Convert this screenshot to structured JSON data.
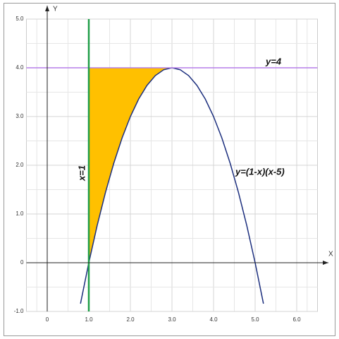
{
  "chart_data": {
    "type": "line",
    "xlabel": "X",
    "ylabel": "Y",
    "xlim": [
      -0.5,
      6.5
    ],
    "ylim": [
      -1,
      5
    ],
    "xticks": [
      0,
      {
        "value": 1,
        "label": "1.0"
      },
      {
        "value": 2,
        "label": "2.0"
      },
      {
        "value": 3,
        "label": "3.0"
      },
      {
        "value": 4,
        "label": "4.0"
      },
      {
        "value": 5,
        "label": "5.0"
      },
      {
        "value": 6,
        "label": "6.0"
      }
    ],
    "yticks": [
      {
        "value": -1,
        "label": "-1.0"
      },
      0,
      {
        "value": 1,
        "label": "1.0"
      },
      {
        "value": 2,
        "label": "2.0"
      },
      {
        "value": 3,
        "label": "3.0"
      },
      {
        "value": 4,
        "label": "4.0"
      },
      {
        "value": 5,
        "label": "5.0"
      }
    ],
    "grid": true,
    "series": [
      {
        "color": "#1c2f7e",
        "x": [
          0.8,
          1.0,
          1.2,
          1.4,
          1.6,
          1.8,
          2.0,
          2.2,
          2.4,
          2.6,
          2.8,
          3.0,
          3.2,
          3.4,
          3.6,
          3.8,
          4.0,
          4.2,
          4.4,
          4.6,
          4.8,
          5.0,
          5.2
        ],
        "values": [
          -0.84,
          0,
          0.76,
          1.44,
          2.04,
          2.56,
          3,
          3.36,
          3.64,
          3.84,
          3.96,
          4,
          3.96,
          3.84,
          3.64,
          3.36,
          3,
          2.56,
          2.04,
          1.44,
          0.76,
          0,
          -0.84
        ]
      },
      {
        "color": "#b67fe8",
        "x": [
          -0.5,
          6.5
        ],
        "values": [
          4,
          4
        ]
      },
      {
        "color": "#1f9e48",
        "x": [
          1,
          1
        ],
        "values": [
          -1,
          5
        ]
      }
    ],
    "fill": {
      "color": "#ffc000",
      "x": [
        1.0,
        1.2,
        1.4,
        1.6,
        1.8,
        2.0,
        2.2,
        2.4,
        2.6,
        2.8,
        3.0
      ],
      "values": [
        0,
        0.76,
        1.44,
        2.04,
        2.56,
        3,
        3.36,
        3.64,
        3.84,
        3.96,
        4
      ],
      "top": 4
    },
    "annotations": [
      "y=4",
      "x=1",
      "y=(1-x)(x-5)"
    ]
  }
}
